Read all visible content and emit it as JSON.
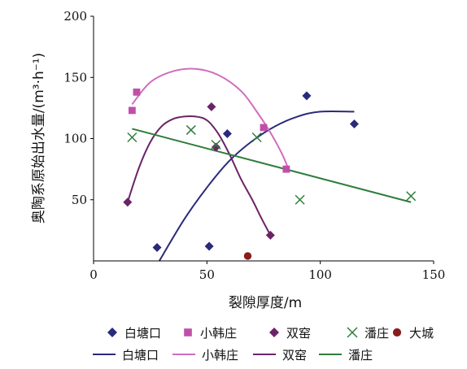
{
  "chart_data": {
    "type": "scatter",
    "xlabel": "裂隙厚度/m",
    "ylabel": "奥陶系原始出水量/(m³·h⁻¹)",
    "xlim": [
      0,
      150
    ],
    "ylim": [
      0,
      200
    ],
    "xticks": [
      "0",
      "50",
      "100",
      "150"
    ],
    "yticks": [
      "50",
      "100",
      "150",
      "200"
    ],
    "grid": false,
    "legend_position": "bottom",
    "series": [
      {
        "name": "白塘口",
        "kind": "points",
        "marker": "diamond",
        "color": "#2a2a7c",
        "points": [
          [
            28,
            11
          ],
          [
            51,
            12
          ],
          [
            59,
            104
          ],
          [
            94,
            135
          ],
          [
            115,
            112
          ]
        ]
      },
      {
        "name": "小韩庄",
        "kind": "points",
        "marker": "square",
        "color": "#c04fa8",
        "points": [
          [
            17,
            123
          ],
          [
            19,
            138
          ],
          [
            75,
            109
          ],
          [
            85,
            75
          ]
        ]
      },
      {
        "name": "双窑",
        "kind": "points",
        "marker": "diamond",
        "color": "#6b2367",
        "points": [
          [
            15,
            48
          ],
          [
            52,
            126
          ],
          [
            54,
            93
          ],
          [
            78,
            21
          ]
        ]
      },
      {
        "name": "潘庄",
        "kind": "points",
        "marker": "x",
        "color": "#2e7d3b",
        "points": [
          [
            17,
            101
          ],
          [
            43,
            107
          ],
          [
            54,
            95
          ],
          [
            72,
            101
          ],
          [
            91,
            50
          ],
          [
            140,
            53
          ]
        ]
      },
      {
        "name": "大城",
        "kind": "points",
        "marker": "circle",
        "color": "#8a1c1c",
        "points": [
          [
            68,
            4
          ]
        ]
      },
      {
        "name": "白塘口",
        "kind": "line",
        "color": "#2a2a7c",
        "points": [
          [
            29,
            0
          ],
          [
            40,
            34
          ],
          [
            50,
            60
          ],
          [
            60,
            82
          ],
          [
            70,
            98
          ],
          [
            80,
            110
          ],
          [
            90,
            118
          ],
          [
            100,
            122
          ],
          [
            115,
            122
          ]
        ]
      },
      {
        "name": "小韩庄",
        "kind": "line",
        "color": "#d06cc0",
        "points": [
          [
            17,
            128
          ],
          [
            25,
            146
          ],
          [
            35,
            155
          ],
          [
            45,
            157
          ],
          [
            55,
            152
          ],
          [
            65,
            139
          ],
          [
            72,
            122
          ],
          [
            78,
            105
          ],
          [
            83,
            88
          ],
          [
            86,
            75
          ]
        ]
      },
      {
        "name": "双窑",
        "kind": "line",
        "color": "#6b2367",
        "points": [
          [
            15,
            48
          ],
          [
            20,
            76
          ],
          [
            25,
            97
          ],
          [
            30,
            110
          ],
          [
            35,
            116
          ],
          [
            40,
            118
          ],
          [
            45,
            118
          ],
          [
            50,
            115
          ],
          [
            55,
            104
          ],
          [
            60,
            87
          ],
          [
            65,
            67
          ],
          [
            70,
            50
          ],
          [
            74,
            35
          ],
          [
            78,
            21
          ]
        ]
      },
      {
        "name": "潘庄",
        "kind": "line",
        "color": "#2e7d3b",
        "points": [
          [
            17,
            108
          ],
          [
            140,
            48
          ]
        ]
      }
    ]
  }
}
